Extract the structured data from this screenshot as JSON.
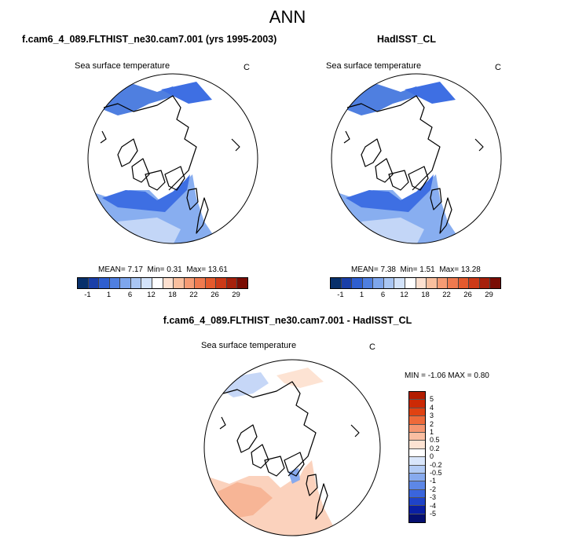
{
  "figure": {
    "title": "ANN"
  },
  "panels": [
    {
      "title": "f.cam6_4_089.FLTHIST_ne30.cam7.001 (yrs 1995-2003)",
      "subtitle": "Sea surface temperature",
      "units": "C",
      "stats": {
        "mean_label": "MEAN=",
        "mean": "7.17",
        "min_label": "Min=",
        "min": "0.31",
        "max_label": "Max=",
        "max": "13.61"
      },
      "colorbar_labels": [
        "-1",
        "1",
        "6",
        "12",
        "18",
        "22",
        "26",
        "29"
      ]
    },
    {
      "title": "HadISST_CL",
      "subtitle": "Sea surface temperature",
      "units": "C",
      "stats": {
        "mean_label": "MEAN=",
        "mean": "7.38",
        "min_label": "Min=",
        "min": "1.51",
        "max_label": "Max=",
        "max": "13.28"
      },
      "colorbar_labels": [
        "-1",
        "1",
        "6",
        "12",
        "18",
        "22",
        "26",
        "29"
      ]
    },
    {
      "title": "f.cam6_4_089.FLTHIST_ne30.cam7.001 - HadISST_CL",
      "subtitle": "Sea surface temperature",
      "units": "C",
      "stats_text": "MIN = -1.06 MAX = 0.80",
      "colorbar_labels": [
        "5",
        "4",
        "3",
        "2",
        "1",
        "0.5",
        "0.2",
        "0",
        "-0.2",
        "-0.5",
        "-1",
        "-2",
        "-3",
        "-4",
        "-5"
      ]
    }
  ],
  "colors": {
    "abs_scale": [
      "#08306b",
      "#1a3fa8",
      "#2f5fd0",
      "#4f7fe0",
      "#7ea6ec",
      "#a9c6f3",
      "#d3e3fa",
      "#ffffff",
      "#fde0cf",
      "#f9bf9e",
      "#f59b74",
      "#ef7a4f",
      "#e45a2d",
      "#cc3a18",
      "#a6210c",
      "#7a0d04"
    ],
    "diff_scale": [
      "#b31d00",
      "#cc2a05",
      "#e04212",
      "#ee6a3a",
      "#f59670",
      "#f9bea1",
      "#fde3d3",
      "#ffffff",
      "#d9e6fb",
      "#b2cbf5",
      "#87aaee",
      "#5d87e6",
      "#3a65dc",
      "#1f43c8",
      "#0a1fa3",
      "#050f70"
    ],
    "ocean_cold": "#3e6fe3",
    "ocean_mid": "#88aef0",
    "ocean_light": "#c3d6f7",
    "diff_warm": "#fbd2bd",
    "diff_cool": "#c6d7f7"
  }
}
